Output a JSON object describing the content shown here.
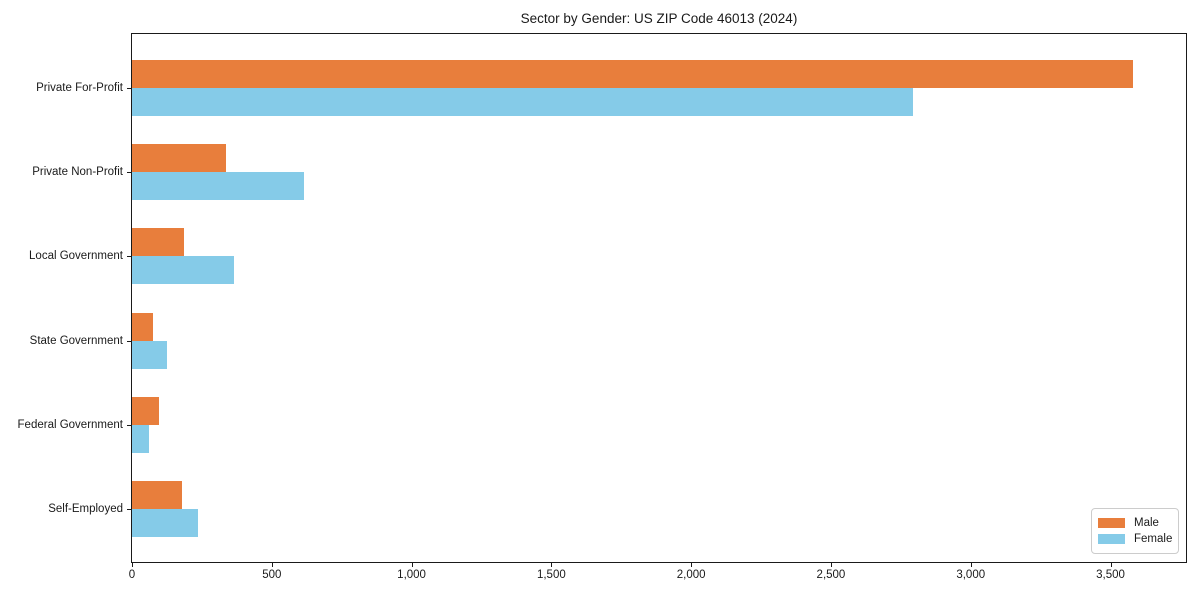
{
  "title": "Sector by Gender: US ZIP Code 46013 (2024)",
  "chart_data": {
    "type": "bar",
    "orientation": "horizontal",
    "title": "Sector by Gender: US ZIP Code 46013 (2024)",
    "categories": [
      "Private For-Profit",
      "Private Non-Profit",
      "Local Government",
      "State Government",
      "Federal Government",
      "Self-Employed"
    ],
    "series": [
      {
        "name": "Male",
        "color": "#e87e3c",
        "values": [
          3580,
          335,
          185,
          75,
          95,
          180
        ]
      },
      {
        "name": "Female",
        "color": "#85cbe8",
        "values": [
          2795,
          615,
          365,
          125,
          60,
          235
        ]
      }
    ],
    "xlabel": "",
    "ylabel": "",
    "xlim": [
      0,
      3770
    ],
    "x_ticks": [
      0,
      500,
      1000,
      1500,
      2000,
      2500,
      3000,
      3500
    ],
    "x_tick_labels": [
      "0",
      "500",
      "1,000",
      "1,500",
      "2,000",
      "2,500",
      "3,000",
      "3,500"
    ],
    "grid": false,
    "legend_position": "lower right"
  }
}
